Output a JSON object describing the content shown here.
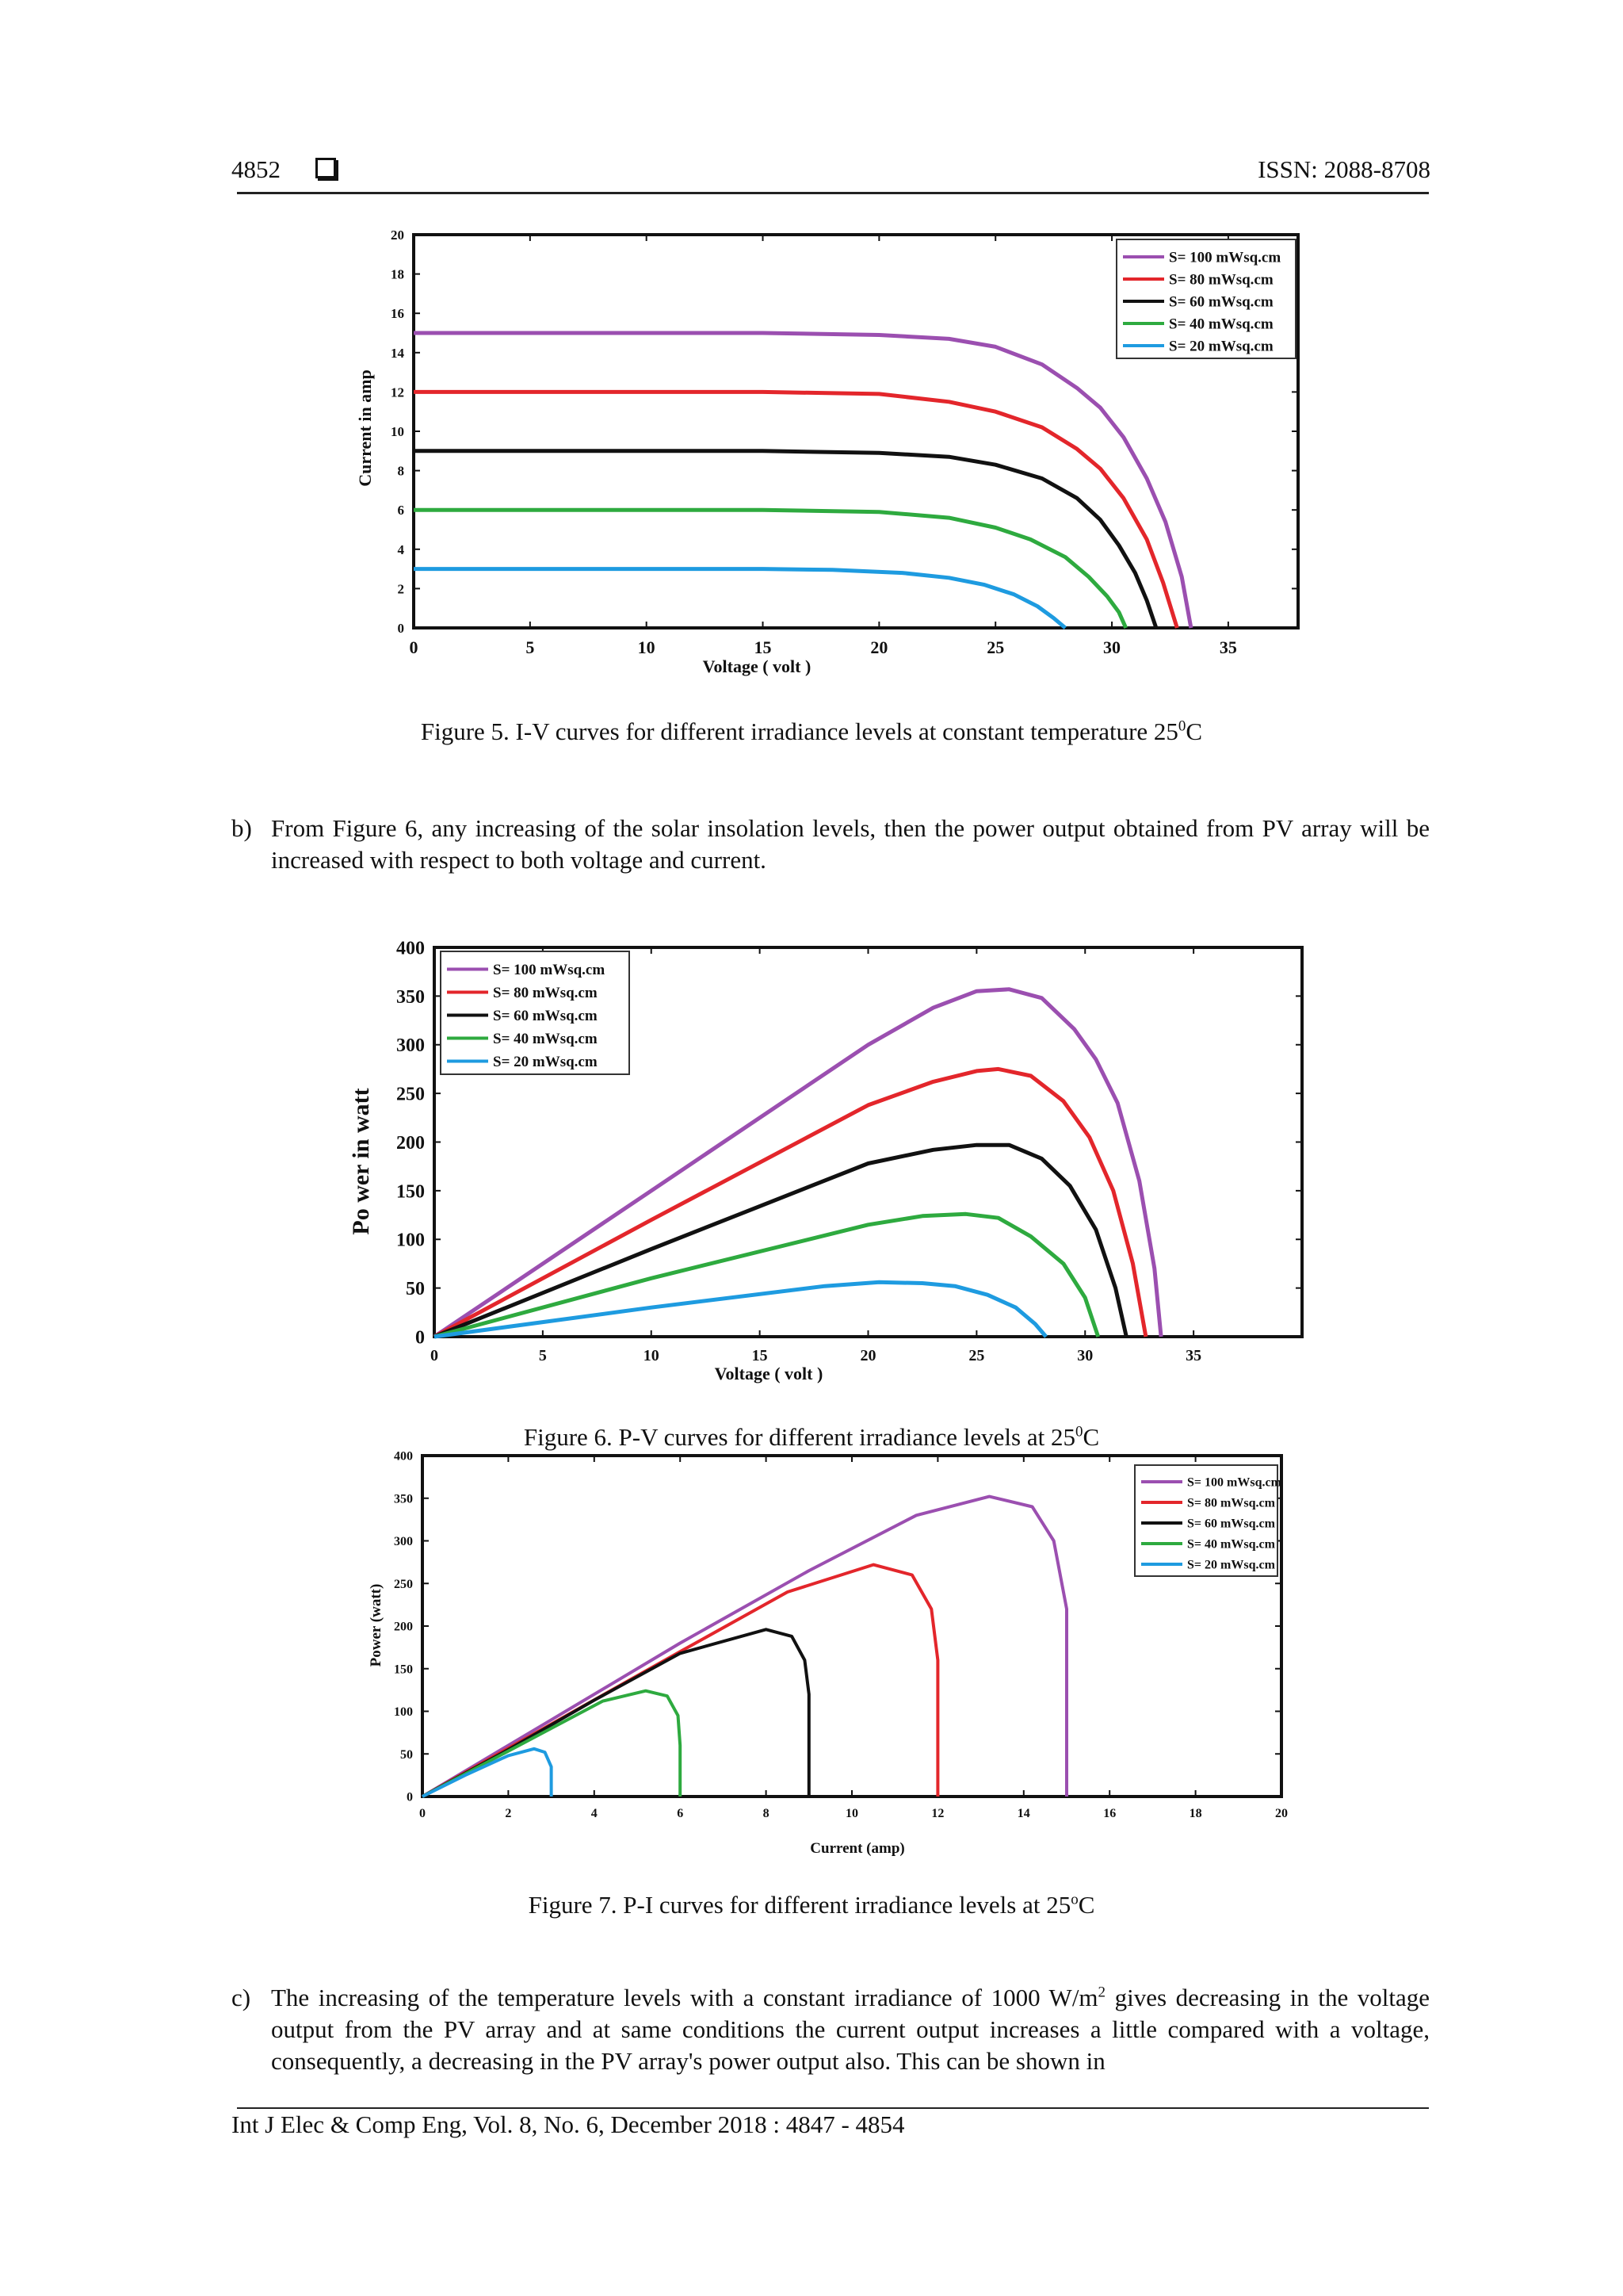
{
  "header": {
    "page_number": "4852",
    "issn": "ISSN: 2088-8708"
  },
  "figure5": {
    "caption": "Figure 5. I-V curves for different irradiance levels at constant temperature 25",
    "caption_sup": "0",
    "caption_end": "C"
  },
  "paragraph_b": {
    "label": "b)",
    "text": "From Figure 6, any increasing of the solar insolation levels, then the power output obtained from PV array will be increased with respect to both voltage and current."
  },
  "figure6": {
    "caption": "Figure 6. P-V curves for different irradiance levels at 25",
    "caption_sup": "0",
    "caption_end": "C"
  },
  "figure7": {
    "caption": "Figure 7. P-I curves for different irradiance levels at 25",
    "caption_sup": "o",
    "caption_end": "C"
  },
  "paragraph_c": {
    "label": "c)",
    "text_1": "The increasing of the temperature levels with a constant irradiance of 1000 W/m",
    "sup": "2",
    "text_2": " gives decreasing in the voltage output from the PV array and at same conditions the current output increases a little compared with a voltage, consequently, a decreasing in the PV array's power output also. This can be shown in"
  },
  "footer": {
    "citation": "Int J Elec & Comp Eng, Vol. 8, No. 6, December 2018 :  4847 - 4854"
  },
  "colors": {
    "s100": "#9b4fb0",
    "s80": "#e3262b",
    "s60": "#111111",
    "s40": "#2eaa3f",
    "s20": "#1e9be0"
  },
  "chart_data": [
    {
      "type": "line",
      "xlabel": "Voltage ( volt )",
      "ylabel": "Current in amp",
      "xlim": [
        0,
        38
      ],
      "ylim": [
        0,
        20
      ],
      "xticks": [
        0,
        5,
        10,
        15,
        20,
        25,
        30,
        35
      ],
      "yticks": [
        0,
        2,
        4,
        6,
        8,
        10,
        12,
        14,
        16,
        18,
        20
      ],
      "legend_position": "top-right",
      "series": [
        {
          "name": "S= 100 mWsq.cm",
          "x": [
            0,
            15,
            20,
            23,
            25,
            27,
            28.5,
            29.5,
            30.5,
            31.5,
            32.3,
            33,
            33.4
          ],
          "y": [
            15,
            15,
            14.9,
            14.7,
            14.3,
            13.4,
            12.2,
            11.2,
            9.7,
            7.6,
            5.4,
            2.6,
            0
          ]
        },
        {
          "name": "S= 80 mWsq.cm",
          "x": [
            0,
            15,
            20,
            23,
            25,
            27,
            28.5,
            29.5,
            30.5,
            31.5,
            32.2,
            32.8
          ],
          "y": [
            12,
            12,
            11.9,
            11.5,
            11.0,
            10.2,
            9.1,
            8.1,
            6.6,
            4.5,
            2.3,
            0
          ]
        },
        {
          "name": "S= 60 mWsq.cm",
          "x": [
            0,
            15,
            20,
            23,
            25,
            27,
            28.5,
            29.5,
            30.3,
            31.0,
            31.5,
            31.9
          ],
          "y": [
            9,
            9,
            8.9,
            8.7,
            8.3,
            7.6,
            6.6,
            5.5,
            4.2,
            2.8,
            1.4,
            0
          ]
        },
        {
          "name": "S= 40 mWsq.cm",
          "x": [
            0,
            15,
            20,
            23,
            25,
            26.5,
            28,
            29,
            29.8,
            30.3,
            30.6
          ],
          "y": [
            6,
            6,
            5.9,
            5.6,
            5.1,
            4.5,
            3.6,
            2.6,
            1.6,
            0.8,
            0
          ]
        },
        {
          "name": "S= 20 mWsq.cm",
          "x": [
            0,
            15,
            18,
            21,
            23,
            24.5,
            25.8,
            26.8,
            27.5,
            28.0
          ],
          "y": [
            3,
            3,
            2.95,
            2.8,
            2.55,
            2.2,
            1.7,
            1.1,
            0.5,
            0
          ]
        }
      ]
    },
    {
      "type": "line",
      "xlabel": "Voltage ( volt )",
      "ylabel": "Po wer in watt",
      "xlim": [
        0,
        40
      ],
      "ylim": [
        0,
        400
      ],
      "xticks": [
        0,
        5,
        10,
        15,
        20,
        25,
        30,
        35
      ],
      "yticks": [
        0,
        50,
        100,
        150,
        200,
        250,
        300,
        350,
        400
      ],
      "legend_position": "top-left",
      "series": [
        {
          "name": "S= 100 mWsq.cm",
          "x": [
            0,
            10,
            20,
            23,
            25,
            26.5,
            28,
            29.5,
            30.5,
            31.5,
            32.5,
            33.2,
            33.5
          ],
          "y": [
            0,
            150,
            300,
            338,
            355,
            357,
            348,
            316,
            285,
            240,
            160,
            70,
            0
          ]
        },
        {
          "name": "S= 80 mWsq.cm",
          "x": [
            0,
            10,
            20,
            23,
            25,
            26,
            27.5,
            29,
            30.2,
            31.3,
            32.2,
            32.8
          ],
          "y": [
            0,
            120,
            238,
            262,
            273,
            275,
            268,
            242,
            205,
            150,
            75,
            0
          ]
        },
        {
          "name": "S= 60 mWsq.cm",
          "x": [
            0,
            10,
            20,
            23,
            25,
            26.5,
            28,
            29.3,
            30.5,
            31.4,
            31.9
          ],
          "y": [
            0,
            90,
            178,
            192,
            197,
            197,
            183,
            155,
            110,
            50,
            0
          ]
        },
        {
          "name": "S= 40 mWsq.cm",
          "x": [
            0,
            10,
            20,
            22.5,
            24.5,
            26,
            27.5,
            29,
            30,
            30.6
          ],
          "y": [
            0,
            60,
            115,
            124,
            126,
            122,
            103,
            75,
            40,
            0
          ]
        },
        {
          "name": "S= 20 mWsq.cm",
          "x": [
            0,
            10,
            18,
            20.5,
            22.5,
            24,
            25.5,
            26.8,
            27.7,
            28.2
          ],
          "y": [
            0,
            30,
            52,
            56,
            55,
            52,
            43,
            30,
            13,
            0
          ]
        }
      ]
    },
    {
      "type": "line",
      "xlabel": "Current  (amp)",
      "ylabel": "Power (watt)",
      "xlim": [
        0,
        20
      ],
      "ylim": [
        0,
        400
      ],
      "xticks": [
        0,
        2,
        4,
        6,
        8,
        10,
        12,
        14,
        16,
        18,
        20
      ],
      "yticks": [
        0,
        50,
        100,
        150,
        200,
        250,
        300,
        350,
        400
      ],
      "legend_position": "top-right",
      "series": [
        {
          "name": "S= 100 mWsq.cm",
          "x": [
            0,
            3,
            6,
            9,
            11.5,
            13.2,
            14.2,
            14.7,
            15,
            15,
            15
          ],
          "y": [
            0,
            90,
            180,
            265,
            330,
            352,
            340,
            300,
            220,
            100,
            0
          ]
        },
        {
          "name": "S= 80 mWsq.cm",
          "x": [
            0,
            3,
            6,
            8.5,
            10.5,
            11.4,
            11.85,
            12,
            12,
            12
          ],
          "y": [
            0,
            85,
            170,
            240,
            272,
            260,
            220,
            160,
            80,
            0
          ]
        },
        {
          "name": "S= 60 mWsq.cm",
          "x": [
            0,
            2,
            4,
            6,
            8,
            8.6,
            8.9,
            9,
            9,
            9
          ],
          "y": [
            0,
            55,
            113,
            168,
            196,
            188,
            160,
            120,
            60,
            0
          ]
        },
        {
          "name": "S= 40 mWsq.cm",
          "x": [
            0,
            1.5,
            3,
            4.2,
            5.2,
            5.7,
            5.95,
            6,
            6,
            6
          ],
          "y": [
            0,
            40,
            80,
            112,
            124,
            118,
            95,
            60,
            30,
            0
          ]
        },
        {
          "name": "S= 20 mWsq.cm",
          "x": [
            0,
            1,
            2,
            2.6,
            2.85,
            3,
            3,
            3
          ],
          "y": [
            0,
            25,
            48,
            56,
            52,
            35,
            15,
            0
          ]
        }
      ]
    }
  ]
}
